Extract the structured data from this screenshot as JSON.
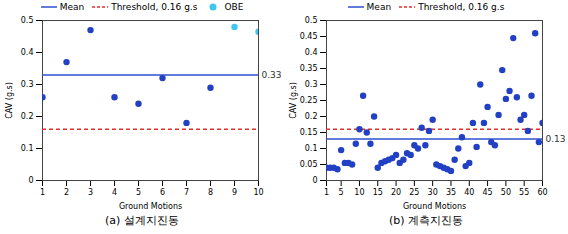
{
  "chart_data": [
    {
      "type": "scatter",
      "title": "(a) 설계지진동",
      "x_label": "Ground Motions",
      "y_label": "CAV (g.s)",
      "x": [
        1,
        2,
        3,
        4,
        5,
        6,
        7,
        8,
        9,
        10
      ],
      "series": [
        {
          "color": "#2140c4",
          "marker": "circle",
          "values": [
            0.26,
            0.37,
            0.47,
            0.26,
            0.24,
            0.32,
            0.18,
            0.29,
            null,
            null
          ]
        },
        {
          "name": "OBE",
          "color": "#3fc6f2",
          "marker": "circle",
          "values": [
            null,
            null,
            null,
            null,
            null,
            null,
            null,
            null,
            0.48,
            0.465
          ]
        }
      ],
      "reference_lines": [
        {
          "name": "Mean",
          "value": 0.33,
          "color": "#2b4fcc",
          "line_style": "solid",
          "data_labels": true
        },
        {
          "name": "Threshold, 0.16 g.s",
          "value": 0.16,
          "color": "#e0302e",
          "line_style": "dashed"
        }
      ],
      "xlim": [
        1,
        10
      ],
      "xticks": [
        1,
        2,
        3,
        4,
        5,
        6,
        7,
        8,
        9,
        10
      ],
      "ylim": [
        0,
        0.5
      ],
      "yticks": [
        0,
        0.1,
        0.2,
        0.3,
        0.4,
        0.5
      ],
      "legend": "top"
    },
    {
      "type": "scatter",
      "title": "(b) 계측지진동",
      "x_label": "Ground Motions",
      "y_label": "CAV (g.s)",
      "x": [
        1,
        2,
        3,
        4,
        5,
        6,
        7,
        8,
        9,
        10,
        11,
        12,
        13,
        14,
        15,
        16,
        17,
        18,
        19,
        20,
        21,
        22,
        23,
        24,
        25,
        26,
        27,
        28,
        29,
        30,
        31,
        32,
        33,
        34,
        35,
        36,
        37,
        38,
        39,
        40,
        41,
        42,
        43,
        44,
        45,
        46,
        47,
        48,
        49,
        50,
        51,
        52,
        53,
        54,
        55,
        56,
        57,
        58,
        59,
        60
      ],
      "series": [
        {
          "color": "#2140c4",
          "marker": "circle",
          "values": [
            0.04,
            0.04,
            0.04,
            0.035,
            0.095,
            0.055,
            0.055,
            0.05,
            0.115,
            0.16,
            0.265,
            0.15,
            0.115,
            0.2,
            0.04,
            0.055,
            0.06,
            0.065,
            0.07,
            0.08,
            0.055,
            0.065,
            0.085,
            0.08,
            0.11,
            0.1,
            0.165,
            0.11,
            0.155,
            0.19,
            0.05,
            0.045,
            0.04,
            0.035,
            0.03,
            0.065,
            0.1,
            0.135,
            0.045,
            0.055,
            0.18,
            0.105,
            0.3,
            0.18,
            0.23,
            0.12,
            0.11,
            0.205,
            0.345,
            0.255,
            0.28,
            0.445,
            0.26,
            0.19,
            0.205,
            0.155,
            0.265,
            0.46,
            0.12,
            0.18
          ]
        }
      ],
      "reference_lines": [
        {
          "name": "Mean",
          "value": 0.13,
          "color": "#2b4fcc",
          "line_style": "solid",
          "data_labels": true
        },
        {
          "name": "Threshold, 0.16 g.s",
          "value": 0.16,
          "color": "#e0302e",
          "line_style": "dashed"
        }
      ],
      "xlim": [
        1,
        60
      ],
      "xticks": [
        1,
        5,
        10,
        15,
        20,
        25,
        30,
        35,
        40,
        45,
        50,
        55,
        60
      ],
      "ylim": [
        0,
        0.5
      ],
      "yticks": [
        0,
        0.05,
        0.1,
        0.15,
        0.2,
        0.25,
        0.3,
        0.35,
        0.4,
        0.45,
        0.5
      ],
      "legend": "top"
    }
  ]
}
